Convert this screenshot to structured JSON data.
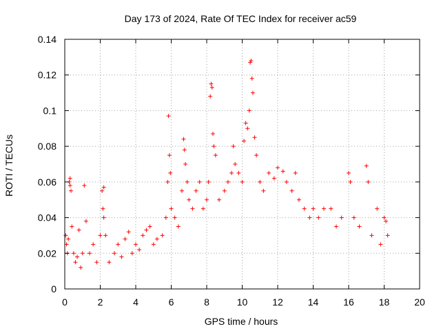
{
  "chart_data": {
    "type": "scatter",
    "title": "Day 173 of 2024, Rate Of TEC Index for receiver ac59",
    "xlabel": "GPS time / hours",
    "ylabel": "ROTI / TECUs",
    "xlim": [
      0,
      20
    ],
    "ylim": [
      0,
      0.14
    ],
    "x_ticks": [
      0,
      2,
      4,
      6,
      8,
      10,
      12,
      14,
      16,
      18,
      20
    ],
    "y_ticks": [
      0,
      0.02,
      0.04,
      0.06,
      0.08,
      0.1,
      0.12,
      0.14
    ],
    "y_tick_labels": [
      "0",
      "0.02",
      "0.04",
      "0.06",
      "0.08",
      "0.1",
      "0.12",
      "0.14"
    ],
    "grid": true,
    "marker": "+",
    "color": "#ff0000",
    "series": [
      {
        "points": [
          [
            0.05,
            0.03
          ],
          [
            0.1,
            0.025
          ],
          [
            0.15,
            0.02
          ],
          [
            0.2,
            0.028
          ],
          [
            0.25,
            0.06
          ],
          [
            0.3,
            0.058
          ],
          [
            0.35,
            0.055
          ],
          [
            0.3,
            0.062
          ],
          [
            0.4,
            0.035
          ],
          [
            0.5,
            0.02
          ],
          [
            0.6,
            0.015
          ],
          [
            0.7,
            0.018
          ],
          [
            0.8,
            0.033
          ],
          [
            0.9,
            0.012
          ],
          [
            1.0,
            0.02
          ],
          [
            1.1,
            0.058
          ],
          [
            1.2,
            0.038
          ],
          [
            1.4,
            0.02
          ],
          [
            1.6,
            0.025
          ],
          [
            1.8,
            0.015
          ],
          [
            2.0,
            0.03
          ],
          [
            2.1,
            0.055
          ],
          [
            2.2,
            0.057
          ],
          [
            2.15,
            0.045
          ],
          [
            2.2,
            0.04
          ],
          [
            2.3,
            0.03
          ],
          [
            2.5,
            0.015
          ],
          [
            2.8,
            0.02
          ],
          [
            3.0,
            0.025
          ],
          [
            3.2,
            0.018
          ],
          [
            3.4,
            0.028
          ],
          [
            3.6,
            0.032
          ],
          [
            3.8,
            0.02
          ],
          [
            4.0,
            0.025
          ],
          [
            4.2,
            0.022
          ],
          [
            4.4,
            0.03
          ],
          [
            4.6,
            0.033
          ],
          [
            4.8,
            0.035
          ],
          [
            5.0,
            0.025
          ],
          [
            5.2,
            0.028
          ],
          [
            5.5,
            0.03
          ],
          [
            5.7,
            0.04
          ],
          [
            5.8,
            0.06
          ],
          [
            5.85,
            0.097
          ],
          [
            5.9,
            0.075
          ],
          [
            5.95,
            0.065
          ],
          [
            6.0,
            0.045
          ],
          [
            6.2,
            0.04
          ],
          [
            6.4,
            0.035
          ],
          [
            6.6,
            0.055
          ],
          [
            6.7,
            0.084
          ],
          [
            6.75,
            0.078
          ],
          [
            6.8,
            0.07
          ],
          [
            6.9,
            0.06
          ],
          [
            7.0,
            0.05
          ],
          [
            7.2,
            0.045
          ],
          [
            7.4,
            0.055
          ],
          [
            7.6,
            0.06
          ],
          [
            7.8,
            0.045
          ],
          [
            8.0,
            0.05
          ],
          [
            8.1,
            0.06
          ],
          [
            8.2,
            0.108
          ],
          [
            8.25,
            0.115
          ],
          [
            8.3,
            0.113
          ],
          [
            8.35,
            0.087
          ],
          [
            8.4,
            0.08
          ],
          [
            8.5,
            0.075
          ],
          [
            8.7,
            0.05
          ],
          [
            9.0,
            0.055
          ],
          [
            9.2,
            0.06
          ],
          [
            9.4,
            0.065
          ],
          [
            9.5,
            0.08
          ],
          [
            9.6,
            0.07
          ],
          [
            9.8,
            0.065
          ],
          [
            10.0,
            0.06
          ],
          [
            10.1,
            0.083
          ],
          [
            10.2,
            0.093
          ],
          [
            10.3,
            0.09
          ],
          [
            10.4,
            0.1
          ],
          [
            10.45,
            0.127
          ],
          [
            10.5,
            0.128
          ],
          [
            10.55,
            0.118
          ],
          [
            10.6,
            0.11
          ],
          [
            10.7,
            0.085
          ],
          [
            10.8,
            0.075
          ],
          [
            11.0,
            0.06
          ],
          [
            11.2,
            0.055
          ],
          [
            11.5,
            0.065
          ],
          [
            11.8,
            0.062
          ],
          [
            12.0,
            0.068
          ],
          [
            12.3,
            0.066
          ],
          [
            12.5,
            0.06
          ],
          [
            12.8,
            0.055
          ],
          [
            13.0,
            0.065
          ],
          [
            13.2,
            0.05
          ],
          [
            13.5,
            0.045
          ],
          [
            13.8,
            0.04
          ],
          [
            14.0,
            0.045
          ],
          [
            14.3,
            0.04
          ],
          [
            14.6,
            0.045
          ],
          [
            15.0,
            0.045
          ],
          [
            15.3,
            0.035
          ],
          [
            15.6,
            0.04
          ],
          [
            16.0,
            0.065
          ],
          [
            16.1,
            0.06
          ],
          [
            16.3,
            0.04
          ],
          [
            16.6,
            0.035
          ],
          [
            17.0,
            0.069
          ],
          [
            17.1,
            0.06
          ],
          [
            17.3,
            0.03
          ],
          [
            17.6,
            0.045
          ],
          [
            17.8,
            0.025
          ],
          [
            18.0,
            0.04
          ],
          [
            18.1,
            0.038
          ],
          [
            18.2,
            0.03
          ]
        ]
      }
    ]
  }
}
